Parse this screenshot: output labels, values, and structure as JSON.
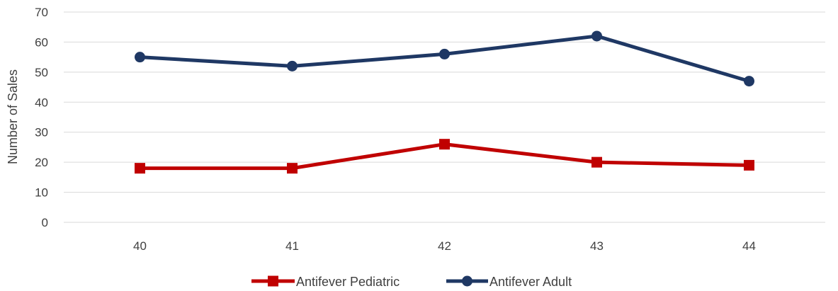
{
  "chart_data": {
    "type": "line",
    "categories": [
      "40",
      "41",
      "42",
      "43",
      "44"
    ],
    "ylabel": "Number of Sales",
    "xlabel": "",
    "ylim": [
      0,
      70
    ],
    "yticks": [
      "0",
      "10",
      "20",
      "30",
      "40",
      "50",
      "60",
      "70"
    ],
    "grid": true,
    "legend_position": "bottom",
    "series": [
      {
        "name": "Antifever Pediatric",
        "values": [
          18,
          18,
          26,
          20,
          19
        ],
        "color": "#C00000",
        "marker": "square"
      },
      {
        "name": "Antifever Adult",
        "values": [
          55,
          52,
          56,
          62,
          47
        ],
        "color": "#1F3864",
        "marker": "circle"
      }
    ]
  }
}
